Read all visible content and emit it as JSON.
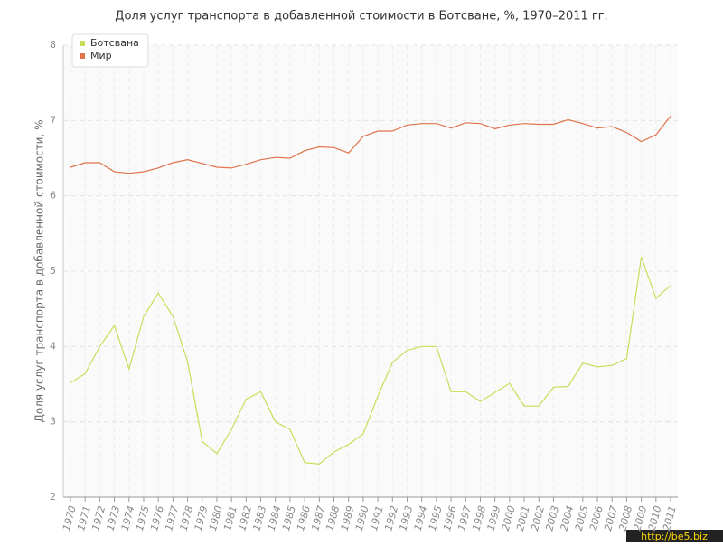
{
  "chart_data": {
    "type": "line",
    "title": "Доля услуг транспорта в добавленной стоимости в Ботсване, %, 1970–2011 гг.",
    "y_label": "Доля услуг транспорта в добавленной стоимости, %",
    "watermark": "http://be5.biz",
    "categories": [
      "1970",
      "1971",
      "1972",
      "1973",
      "1974",
      "1975",
      "1976",
      "1977",
      "1978",
      "1979",
      "1980",
      "1981",
      "1982",
      "1983",
      "1984",
      "1985",
      "1986",
      "1987",
      "1988",
      "1989",
      "1990",
      "1991",
      "1992",
      "1993",
      "1994",
      "1995",
      "1996",
      "1997",
      "1998",
      "1999",
      "2000",
      "2001",
      "2002",
      "2003",
      "2004",
      "2005",
      "2006",
      "2007",
      "2008",
      "2009",
      "2010",
      "2011"
    ],
    "series": [
      {
        "name": "Ботсвана",
        "color": "#c8de5a",
        "values": [
          3.52,
          3.64,
          4.0,
          4.28,
          3.7,
          4.4,
          4.71,
          4.4,
          3.8,
          2.74,
          2.58,
          2.9,
          3.3,
          3.4,
          3.0,
          2.9,
          2.46,
          2.44,
          2.6,
          2.7,
          2.84,
          3.34,
          3.79,
          3.95,
          4.0,
          4.0,
          3.4,
          3.4,
          3.27,
          3.39,
          3.51,
          3.21,
          3.21,
          3.46,
          3.47,
          3.78,
          3.73,
          3.75,
          3.84,
          5.19,
          4.64,
          4.81
        ]
      },
      {
        "name": "Мир",
        "color": "#e0734a",
        "values": [
          6.38,
          6.44,
          6.44,
          6.32,
          6.3,
          6.32,
          6.37,
          6.44,
          6.48,
          6.43,
          6.38,
          6.37,
          6.42,
          6.48,
          6.51,
          6.5,
          6.6,
          6.65,
          6.64,
          6.57,
          6.79,
          6.86,
          6.86,
          6.94,
          6.96,
          6.96,
          6.9,
          6.97,
          6.96,
          6.89,
          6.94,
          6.96,
          6.95,
          6.95,
          7.01,
          6.96,
          6.9,
          6.92,
          6.84,
          6.72,
          6.81,
          7.06
        ]
      }
    ],
    "ylim": [
      2,
      8
    ],
    "yticks": [
      2,
      3,
      4,
      5,
      6,
      7,
      8
    ],
    "grid": true,
    "legend": "top-left"
  }
}
